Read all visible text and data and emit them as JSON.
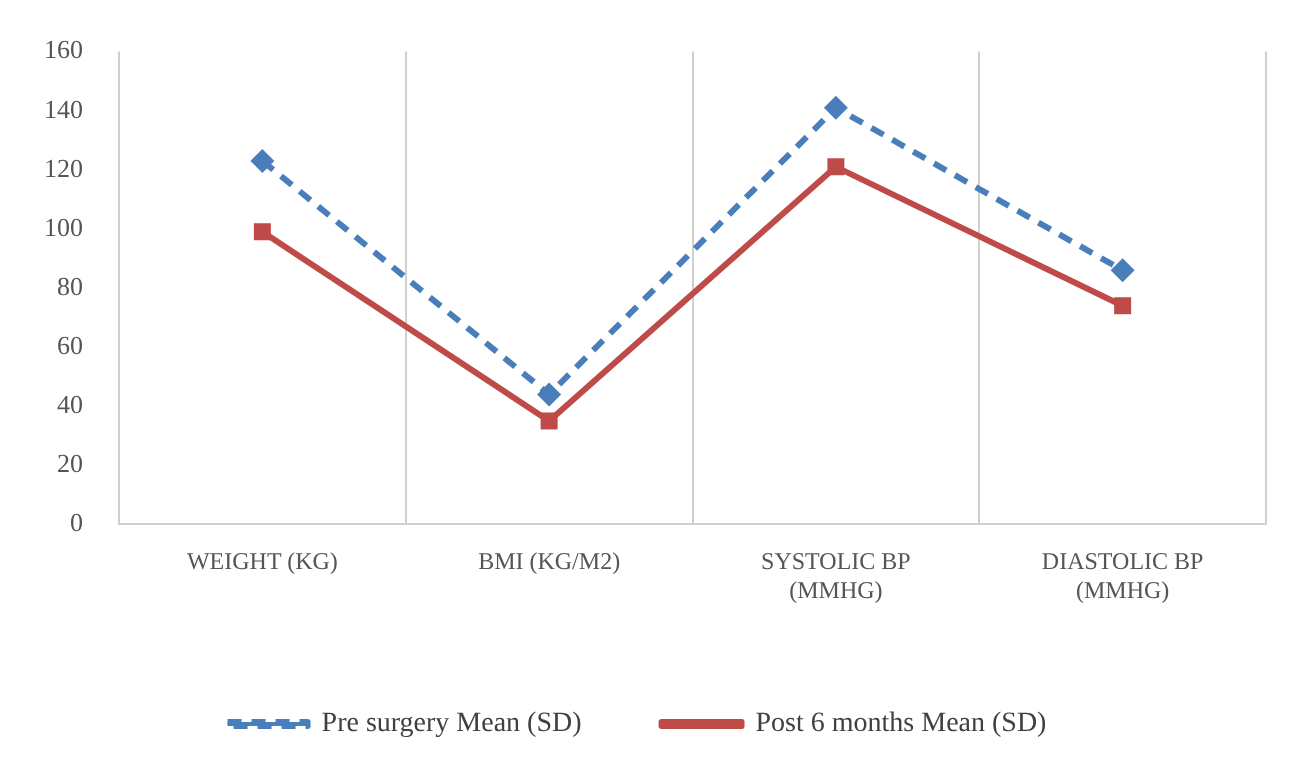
{
  "chart_data": {
    "type": "line",
    "categories": [
      "WEIGHT (KG)",
      "BMI (KG/M2)",
      "SYSTOLIC BP (MMHG)",
      "DIASTOLIC BP (MMHG)"
    ],
    "series": [
      {
        "name": "Pre surgery Mean (SD)",
        "color": "#4a7ebb",
        "values": [
          123,
          44,
          141,
          86
        ],
        "marker": "diamond",
        "line_style": "dashed"
      },
      {
        "name": "Post 6 months Mean (SD)",
        "color": "#be4b48",
        "values": [
          99,
          35,
          121,
          74
        ],
        "marker": "square",
        "line_style": "solid"
      }
    ],
    "ylim": [
      0,
      160
    ],
    "yticks": [
      0,
      20,
      40,
      60,
      80,
      100,
      120,
      140,
      160
    ],
    "grid": "x",
    "legend": "bottom"
  }
}
